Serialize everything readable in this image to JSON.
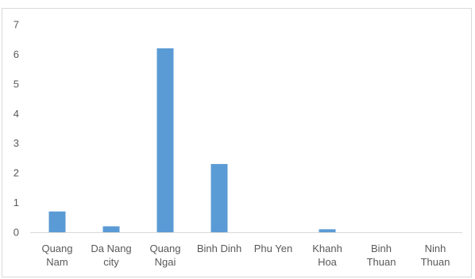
{
  "chart_data": {
    "type": "bar",
    "categories": [
      [
        "Quang",
        "Nam"
      ],
      [
        "Da Nang",
        "city"
      ],
      [
        "Quang",
        "Ngai"
      ],
      [
        "Binh Dinh"
      ],
      [
        "Phu Yen"
      ],
      [
        "Khanh",
        "Hoa"
      ],
      [
        "Binh",
        "Thuan"
      ],
      [
        "Ninh",
        "Thuan"
      ]
    ],
    "values": [
      0.7,
      0.2,
      6.2,
      2.3,
      0,
      0.1,
      0,
      0
    ],
    "ylim": [
      0,
      7
    ],
    "yticks": [
      "0",
      "1",
      "2",
      "3",
      "4",
      "5",
      "6",
      "7"
    ],
    "grid": false,
    "legend": "none",
    "bar_color": "#5b9bd5",
    "axis_color": "#d9d9d9",
    "label_color": "#595959"
  }
}
